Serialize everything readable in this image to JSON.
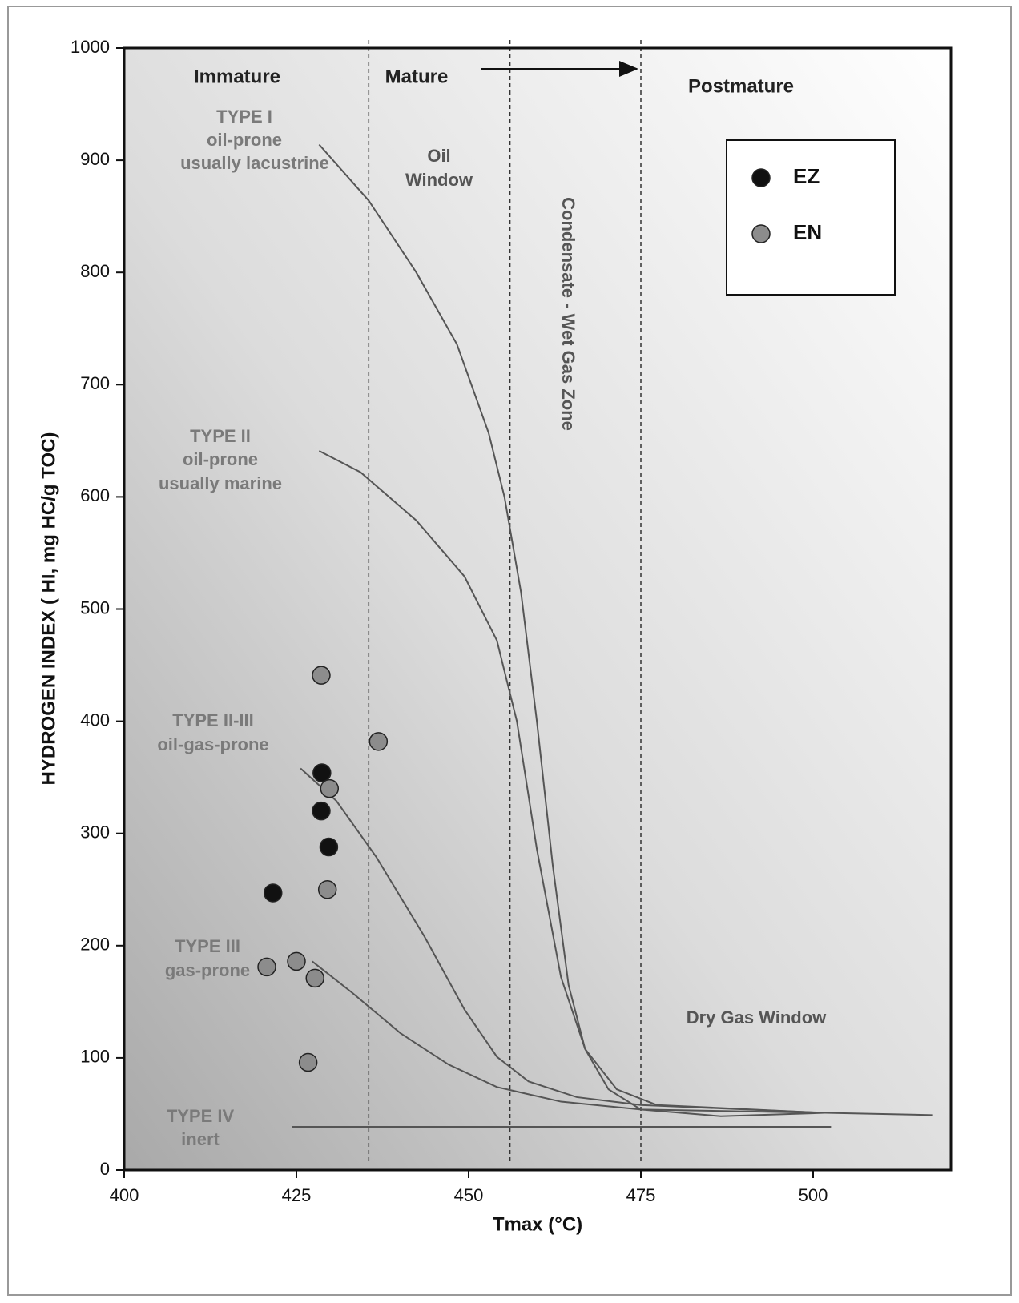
{
  "chart_data": {
    "type": "scatter",
    "x_label": "Tmax (°C)",
    "y_label": "HYDROGEN INDEX ( HI, mg HC/g TOC)",
    "xlim": [
      400,
      520
    ],
    "ylim": [
      0,
      1000
    ],
    "xticks": [
      400,
      425,
      450,
      475,
      500
    ],
    "yticks": [
      0,
      100,
      200,
      300,
      400,
      500,
      600,
      700,
      800,
      900,
      1000
    ],
    "series": [
      {
        "name": "EZ",
        "color": "#111111",
        "x": [
          428.7,
          428.6,
          429.7,
          421.6
        ],
        "y": [
          354,
          320,
          288,
          247
        ]
      },
      {
        "name": "EN",
        "color": "#8c8c8c",
        "x": [
          428.6,
          436.9,
          429.8,
          429.5,
          420.7,
          425,
          427.7,
          426.7
        ],
        "y": [
          441,
          382,
          340,
          250,
          181,
          186,
          171,
          96
        ]
      }
    ],
    "lines": [
      {
        "color": "#555555",
        "x": [
          428.3,
          435.5,
          442.4,
          448.3,
          452.9,
          455.2,
          457.6,
          459.9,
          462.2,
          464.5,
          466.9,
          470.3,
          475,
          486.6,
          501.7
        ],
        "y": [
          914,
          864,
          800,
          736,
          657,
          600,
          515,
          400,
          272,
          165,
          108,
          72,
          54,
          48,
          51
        ]
      },
      {
        "color": "#555555",
        "x": [
          428.3,
          434.3,
          442.4,
          449.4,
          454.1,
          457,
          459.9,
          463.4,
          466.9,
          471.5,
          477.3,
          501.7
        ],
        "y": [
          641,
          622,
          579,
          529,
          472,
          400,
          286,
          172,
          108,
          72,
          58,
          51
        ]
      },
      {
        "color": "#555555",
        "x": [
          425.6,
          430.8,
          436.6,
          443.6,
          449.4,
          454.1,
          458.7,
          465.7,
          475,
          501.7
        ],
        "y": [
          358,
          329,
          279,
          208,
          143,
          101,
          79,
          65,
          58,
          51
        ]
      },
      {
        "color": "#555555",
        "x": [
          427.3,
          433.1,
          440.1,
          447.1,
          454.1,
          463.4,
          475,
          501.7,
          517.4
        ],
        "y": [
          186,
          158,
          122,
          94,
          74,
          61,
          54,
          51,
          49
        ]
      },
      {
        "color": "#555555",
        "x": [
          424.4,
          502.6
        ],
        "y": [
          38.5,
          38.5
        ]
      }
    ],
    "zone_boundaries": [
      435.5,
      456,
      475
    ],
    "annotations": [
      "Immature",
      "Mature",
      "Postmature",
      "TYPE I",
      "oil-prone",
      "usually lacustrine",
      "Oil",
      "Window",
      "Condensate - Wet Gas Zone",
      "TYPE II",
      "oil-prone",
      "usually marine",
      "TYPE II-III",
      "oil-gas-prone",
      "TYPE III",
      "gas-prone",
      "TYPE IV",
      "inert",
      "Dry Gas Window"
    ]
  }
}
